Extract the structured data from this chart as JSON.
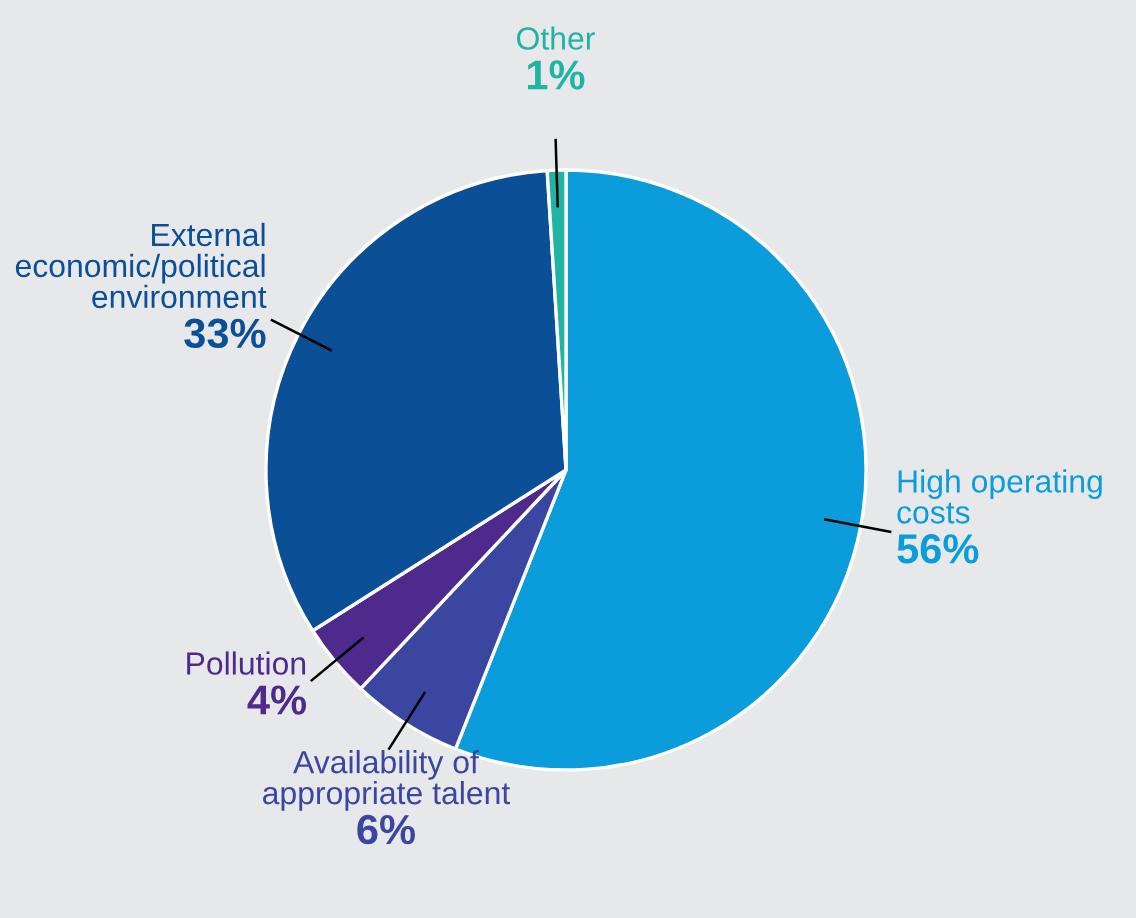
{
  "chart_data": {
    "type": "pie",
    "categories": [
      "High operating\ncosts",
      "Availability of\nappropriate talent",
      "Pollution",
      "External\neconomic/political\nenvironment",
      "Other"
    ],
    "values": [
      56,
      6,
      4,
      33,
      1
    ],
    "value_labels": [
      "56%",
      "6%",
      "4%",
      "33%",
      "1%"
    ],
    "colors": [
      "#0a9cdb",
      "#3b46a0",
      "#4e2a8c",
      "#0b4f97",
      "#21b3a4"
    ]
  }
}
